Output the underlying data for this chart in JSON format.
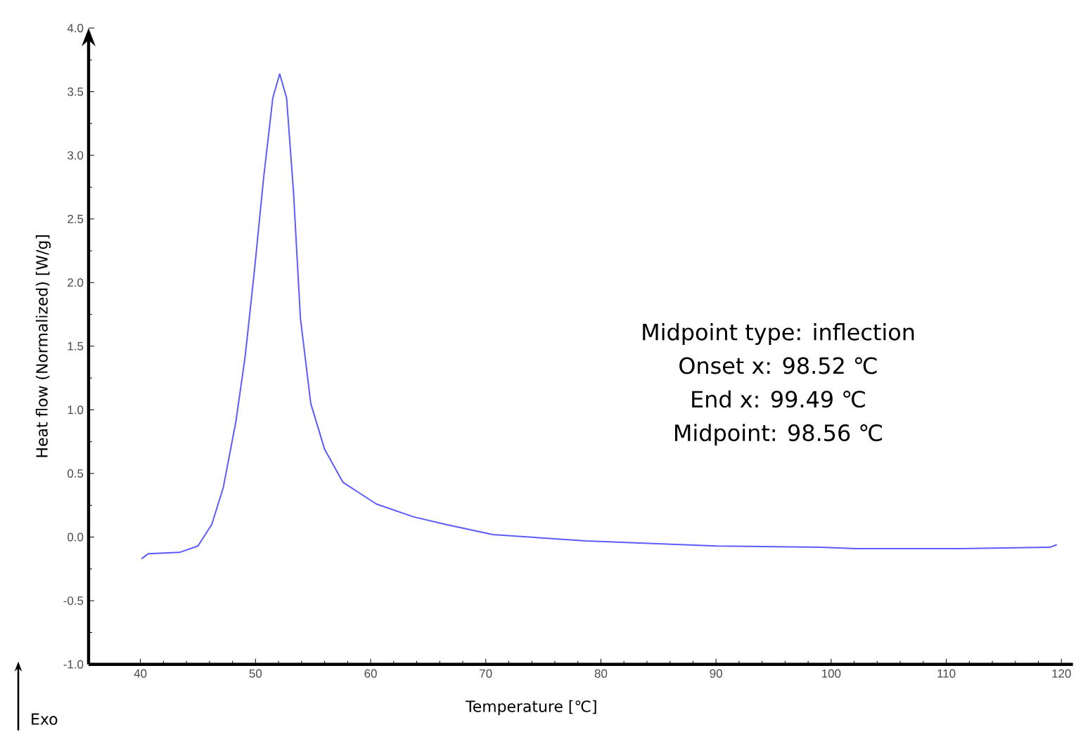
{
  "chart_data": {
    "type": "line",
    "xlabel": "Temperature [℃]",
    "ylabel": "Heat flow (Normalized) [W/g]",
    "xlim": [
      35.5,
      121
    ],
    "ylim": [
      -1.0,
      4.0
    ],
    "xticks": [
      40,
      50,
      60,
      70,
      80,
      90,
      100,
      110,
      120
    ],
    "yticks": [
      {
        "value": -1.0,
        "label": "-1.0"
      },
      {
        "value": -0.5,
        "label": "-0.5"
      },
      {
        "value": 0,
        "label": "0.0"
      },
      {
        "value": 0.5,
        "label": "0.5"
      },
      {
        "value": 1.0,
        "label": "1.0"
      },
      {
        "value": 1.5,
        "label": "1.5"
      },
      {
        "value": 2.0,
        "label": "2.0"
      },
      {
        "value": 2.5,
        "label": "2.5"
      },
      {
        "value": 3.0,
        "label": "3.0"
      },
      {
        "value": 3.5,
        "label": "3.5"
      },
      {
        "value": 4.0,
        "label": "4.0"
      }
    ],
    "marker": "none",
    "line_style": "solid",
    "series": [
      {
        "color": "#5b5bff",
        "x": [
          40.1,
          40.7,
          43.4,
          45.0,
          46.2,
          47.2,
          48.3,
          49.1,
          49.9,
          50.7,
          51.5,
          52.1,
          52.7,
          53.3,
          53.9,
          54.8,
          56.0,
          57.6,
          60.5,
          63.7,
          66.5,
          70.6,
          78.7,
          90.1,
          99,
          102.2,
          111.2,
          119,
          119.6
        ],
        "values": [
          -0.17,
          -0.13,
          -0.12,
          -0.07,
          0.1,
          0.39,
          0.91,
          1.42,
          2.09,
          2.82,
          3.45,
          3.64,
          3.45,
          2.71,
          1.72,
          1.05,
          0.69,
          0.43,
          0.26,
          0.16,
          0.1,
          0.02,
          -0.03,
          -0.07,
          -0.08,
          -0.09,
          -0.09,
          -0.08,
          -0.06
        ]
      }
    ],
    "annotations": [
      "Midpoint type: inflection",
      "Onset x: 98.52 ℃",
      "End x: 99.49 ℃",
      "Midpoint: 98.56 ℃",
      "Exo"
    ]
  }
}
